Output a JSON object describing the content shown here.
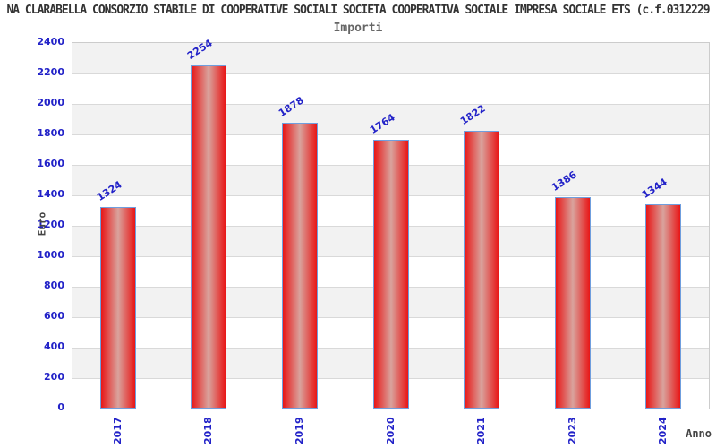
{
  "chart_data": {
    "type": "bar",
    "title": "NA CLARABELLA CONSORZIO STABILE DI COOPERATIVE SOCIALI SOCIETA COOPERATIVA SOCIALE IMPRESA SOCIALE ETS (c.f.0312229",
    "subtitle": "Importi",
    "xlabel": "Anno",
    "ylabel": "Euro",
    "categories": [
      "2017",
      "2018",
      "2019",
      "2020",
      "2021",
      "2023",
      "2024"
    ],
    "values": [
      1324,
      2254,
      1878,
      1764,
      1822,
      1386,
      1344
    ],
    "ylim": [
      0,
      2400
    ],
    "ytick_step": 200,
    "grid": true,
    "legend": "none",
    "colors": {
      "background": "#ffffff",
      "title_color": "#333333",
      "subtitle_color": "#666666",
      "axis_title_color": "#444444",
      "label_blue": "#2222c8",
      "band_gray": "#f2f2f2",
      "band_white": "#ffffff",
      "gridline": "#d9d9d9",
      "plot_border": "#cccccc",
      "bar_fill_edge": "#e81616",
      "bar_fill_center": "#d9a39d",
      "bar_border": "#6f9ede"
    }
  }
}
